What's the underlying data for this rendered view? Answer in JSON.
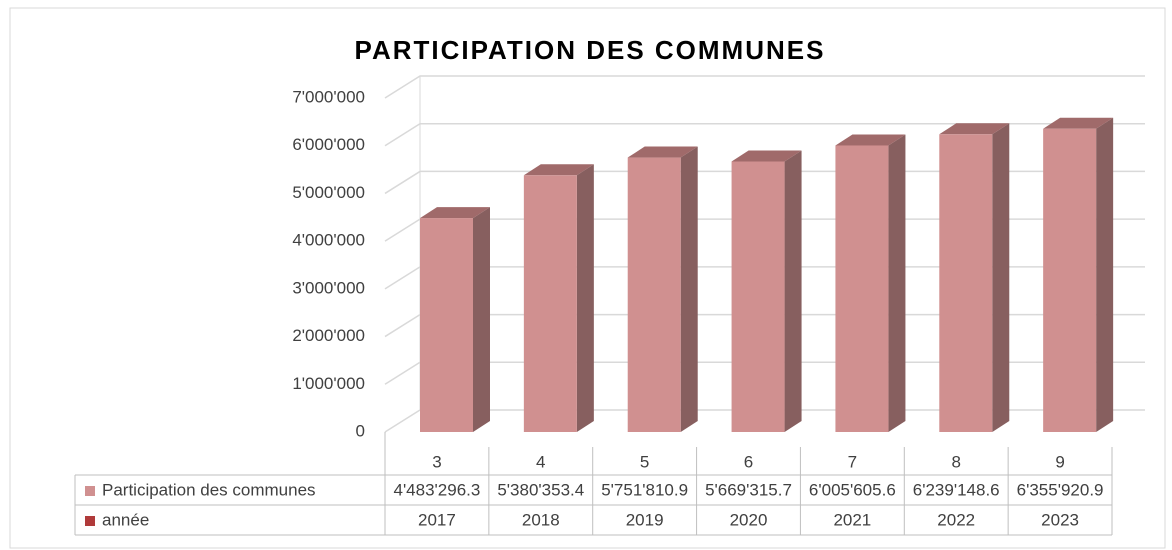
{
  "chart_data": {
    "type": "bar3d",
    "title": "PARTICIPATION DES COMMUNES",
    "categories": [
      3,
      4,
      5,
      6,
      7,
      8,
      9
    ],
    "series": [
      {
        "name": "Participation des communes",
        "color": "#d09090",
        "values": [
          4483296.3,
          5380353.4,
          5751810.9,
          5669315.7,
          6005605.6,
          6239148.6,
          6355920.9
        ],
        "value_labels": [
          "4'483'296.3",
          "5'380'353.4",
          "5'751'810.9",
          "5'669'315.7",
          "6'005'605.6",
          "6'239'148.6",
          "6'355'920.9"
        ]
      },
      {
        "name": "année",
        "color": "#b03a3a",
        "values": [
          2017,
          2018,
          2019,
          2020,
          2021,
          2022,
          2023
        ]
      }
    ],
    "ylim": [
      0,
      7000000
    ],
    "yticks": [
      0,
      {
        "value": 1000000,
        "label": "1'000'000"
      },
      {
        "value": 2000000,
        "label": "2'000'000"
      },
      {
        "value": 3000000,
        "label": "3'000'000"
      },
      {
        "value": 4000000,
        "label": "4'000'000"
      },
      {
        "value": 5000000,
        "label": "5'000'000"
      },
      {
        "value": 6000000,
        "label": "6'000'000"
      },
      {
        "value": 7000000,
        "label": "7'000'000"
      }
    ],
    "grid": true
  }
}
